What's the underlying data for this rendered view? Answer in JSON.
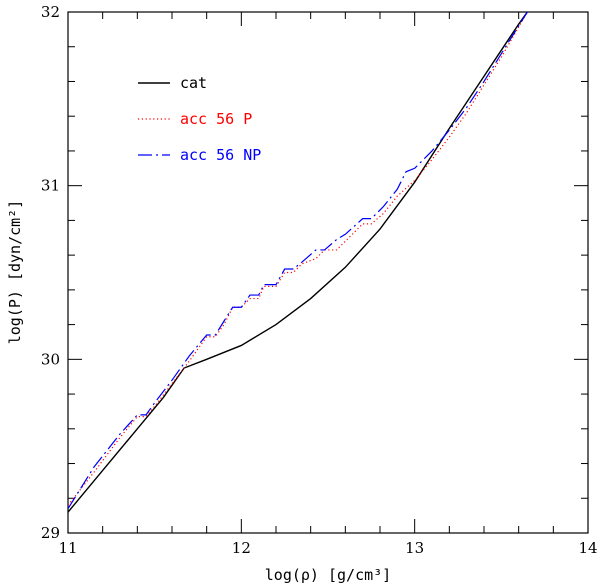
{
  "chart_data": {
    "type": "line",
    "title": "",
    "xlabel": "log(ρ) [g/cm³]",
    "ylabel": "log(P) [dyn/cm²]",
    "xlim": [
      11,
      14
    ],
    "ylim": [
      29,
      32
    ],
    "xticks": [
      11,
      12,
      13,
      14
    ],
    "yticks": [
      29,
      30,
      31,
      32
    ],
    "xtick_labels": [
      "11",
      "12",
      "13",
      "14"
    ],
    "ytick_labels": [
      "29",
      "30",
      "31",
      "32"
    ],
    "legend_placement": "top-left",
    "series": [
      {
        "name": "cat",
        "style": "solid",
        "color": "#000000",
        "x": [
          11.0,
          11.2,
          11.4,
          11.55,
          11.67,
          11.8,
          12.0,
          12.2,
          12.4,
          12.6,
          12.8,
          13.0,
          13.2,
          13.4,
          13.6,
          13.65
        ],
        "y": [
          29.12,
          29.36,
          29.6,
          29.78,
          29.95,
          30.0,
          30.08,
          30.2,
          30.35,
          30.53,
          30.75,
          31.02,
          31.33,
          31.63,
          31.93,
          32.0
        ]
      },
      {
        "name": "acc 56 P",
        "style": "dotted",
        "color": "#ff0000",
        "x": [
          11.0,
          11.15,
          11.3,
          11.4,
          11.45,
          11.5,
          11.6,
          11.7,
          11.8,
          11.85,
          11.9,
          11.95,
          12.0,
          12.05,
          12.1,
          12.13,
          12.2,
          12.25,
          12.3,
          12.35,
          12.43,
          12.48,
          12.55,
          12.6,
          12.7,
          12.75,
          12.82,
          12.9,
          13.0,
          13.1,
          13.2,
          13.3,
          13.4,
          13.5,
          13.65
        ],
        "y": [
          29.16,
          29.35,
          29.55,
          29.67,
          29.67,
          29.73,
          29.86,
          29.99,
          30.13,
          30.13,
          30.2,
          30.3,
          30.3,
          30.35,
          30.35,
          30.42,
          30.42,
          30.5,
          30.5,
          30.55,
          30.58,
          30.63,
          30.63,
          30.68,
          30.78,
          30.78,
          30.84,
          30.94,
          31.03,
          31.15,
          31.28,
          31.42,
          31.58,
          31.74,
          32.0
        ]
      },
      {
        "name": "acc 56 NP",
        "style": "dashdot",
        "color": "#0000ff",
        "x": [
          11.0,
          11.15,
          11.3,
          11.4,
          11.45,
          11.5,
          11.6,
          11.7,
          11.8,
          11.85,
          11.9,
          11.95,
          12.0,
          12.05,
          12.1,
          12.13,
          12.2,
          12.25,
          12.3,
          12.35,
          12.43,
          12.48,
          12.55,
          12.6,
          12.7,
          12.75,
          12.82,
          12.9,
          12.95,
          13.0,
          13.1,
          13.2,
          13.3,
          13.4,
          13.5,
          13.65
        ],
        "y": [
          29.14,
          29.38,
          29.57,
          29.68,
          29.68,
          29.75,
          29.88,
          30.02,
          30.14,
          30.14,
          30.22,
          30.3,
          30.3,
          30.37,
          30.37,
          30.43,
          30.43,
          30.52,
          30.52,
          30.56,
          30.63,
          30.63,
          30.69,
          30.72,
          30.81,
          30.81,
          30.88,
          30.98,
          31.08,
          31.1,
          31.2,
          31.32,
          31.45,
          31.6,
          31.76,
          32.0
        ]
      }
    ]
  }
}
